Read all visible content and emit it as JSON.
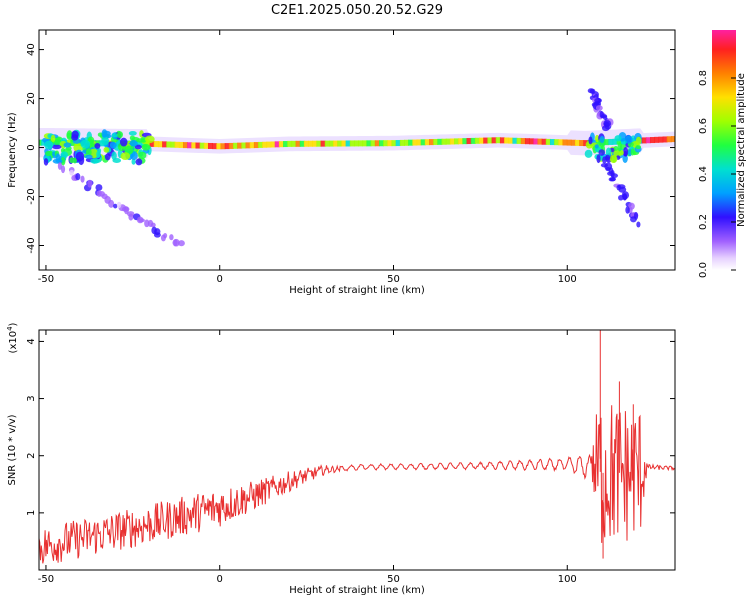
{
  "title": "C2E1.2025.050.20.52.G29",
  "chart_data": [
    {
      "type": "heatmap",
      "xlabel": "Height of straight line (km)",
      "ylabel": "Frequency (Hz)",
      "xlim": [
        -52,
        131
      ],
      "ylim": [
        -50,
        48
      ],
      "x_ticks": [
        -50,
        0,
        50,
        100
      ],
      "y_ticks": [
        -40,
        -20,
        0,
        20,
        40
      ],
      "colorbar": {
        "label": "Normalized spectral amplitude",
        "ticks": [
          0.0,
          0.2,
          0.4,
          0.6,
          0.8
        ],
        "range": [
          0,
          1
        ]
      },
      "ridge": [
        {
          "x": -50,
          "f": 2.0
        },
        {
          "x": -20,
          "f": 1.5
        },
        {
          "x": 0,
          "f": 0.5
        },
        {
          "x": 20,
          "f": 1.5
        },
        {
          "x": 50,
          "f": 1.8
        },
        {
          "x": 80,
          "f": 3.0
        },
        {
          "x": 105,
          "f": 1.8
        },
        {
          "x": 131,
          "f": 3.5
        }
      ],
      "scatter_branches": [
        {
          "x_start": -45,
          "x_end": -12,
          "f_start": -8,
          "f_end": -40
        },
        {
          "x_start": 107,
          "x_end": 112,
          "f_start": 23,
          "f_end": 8
        },
        {
          "x_start": 110,
          "x_end": 120,
          "f_start": -3,
          "f_end": -30
        }
      ]
    },
    {
      "type": "line",
      "xlabel": "Height of straight line (km)",
      "ylabel": "SNR (10 * v/v)",
      "y_multiplier": "(x10",
      "y_multiplier_exp": "4",
      "xlim": [
        -52,
        131
      ],
      "ylim": [
        0,
        4.2
      ],
      "x_ticks": [
        -50,
        0,
        50,
        100
      ],
      "y_ticks": [
        1,
        2,
        3,
        4
      ],
      "color": "#e83030",
      "envelope": [
        {
          "x": -52,
          "y": 0.4
        },
        {
          "x": -40,
          "y": 0.55
        },
        {
          "x": -20,
          "y": 0.8
        },
        {
          "x": 0,
          "y": 1.1
        },
        {
          "x": 10,
          "y": 1.3
        },
        {
          "x": 20,
          "y": 1.55
        },
        {
          "x": 30,
          "y": 1.75
        },
        {
          "x": 40,
          "y": 1.8
        },
        {
          "x": 70,
          "y": 1.82
        },
        {
          "x": 100,
          "y": 1.85
        },
        {
          "x": 107,
          "y": 1.8
        },
        {
          "x": 110,
          "y": 1.7
        },
        {
          "x": 120,
          "y": 1.7
        },
        {
          "x": 123,
          "y": 1.8
        },
        {
          "x": 131,
          "y": 1.78
        }
      ],
      "noise_amplitude": [
        {
          "x": -52,
          "a": 0.35
        },
        {
          "x": 0,
          "a": 0.35
        },
        {
          "x": 20,
          "a": 0.18
        },
        {
          "x": 35,
          "a": 0.04
        },
        {
          "x": 75,
          "a": 0.05
        },
        {
          "x": 100,
          "a": 0.1
        },
        {
          "x": 107,
          "a": 0.2
        },
        {
          "x": 109,
          "a": 1.4
        },
        {
          "x": 121,
          "a": 1.2
        },
        {
          "x": 123,
          "a": 0.05
        },
        {
          "x": 131,
          "a": 0.03
        }
      ],
      "peaks": [
        {
          "x": 109.5,
          "y": 4.2
        },
        {
          "x": 110.3,
          "y": 0.2
        },
        {
          "x": 115,
          "y": 3.3
        },
        {
          "x": 119,
          "y": 2.9
        }
      ]
    }
  ]
}
